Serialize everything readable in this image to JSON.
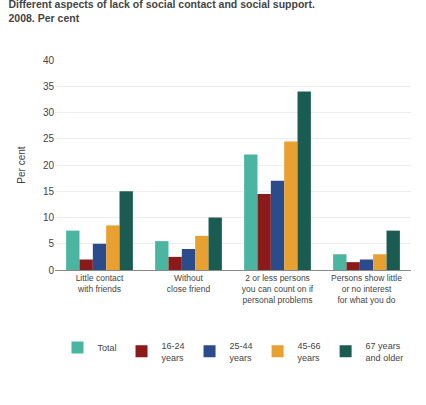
{
  "chart_data": {
    "type": "bar",
    "title": "Different aspects of lack of social contact and social support.\n2008. Per cent",
    "ylabel": "Per cent",
    "categories": [
      "Little contact\nwith friends",
      "Without\nclose friend",
      "2 or less persons\nyou can count on if\npersonal problems",
      "Persons show little\nor no interest\nfor what you do"
    ],
    "series": [
      {
        "name": "Total",
        "color": "#4ab5a0",
        "values": [
          7.5,
          5.5,
          22.0,
          3.0
        ]
      },
      {
        "name": "16-24\nyears",
        "color": "#8b1a1a",
        "values": [
          2.0,
          2.5,
          14.5,
          1.5
        ]
      },
      {
        "name": "25-44\nyears",
        "color": "#2b4c8c",
        "values": [
          5.0,
          4.0,
          17.0,
          2.0
        ]
      },
      {
        "name": "45-66\nyears",
        "color": "#e8a030",
        "values": [
          8.5,
          6.5,
          24.5,
          3.0
        ]
      },
      {
        "name": "67 years\nand older",
        "color": "#1a5c52",
        "values": [
          15.0,
          10.0,
          34.0,
          7.5
        ]
      }
    ],
    "ylim": [
      0,
      40
    ],
    "yticks": [
      0,
      5,
      10,
      15,
      20,
      25,
      30,
      35,
      40
    ],
    "grid": true,
    "legend": "bottom"
  }
}
